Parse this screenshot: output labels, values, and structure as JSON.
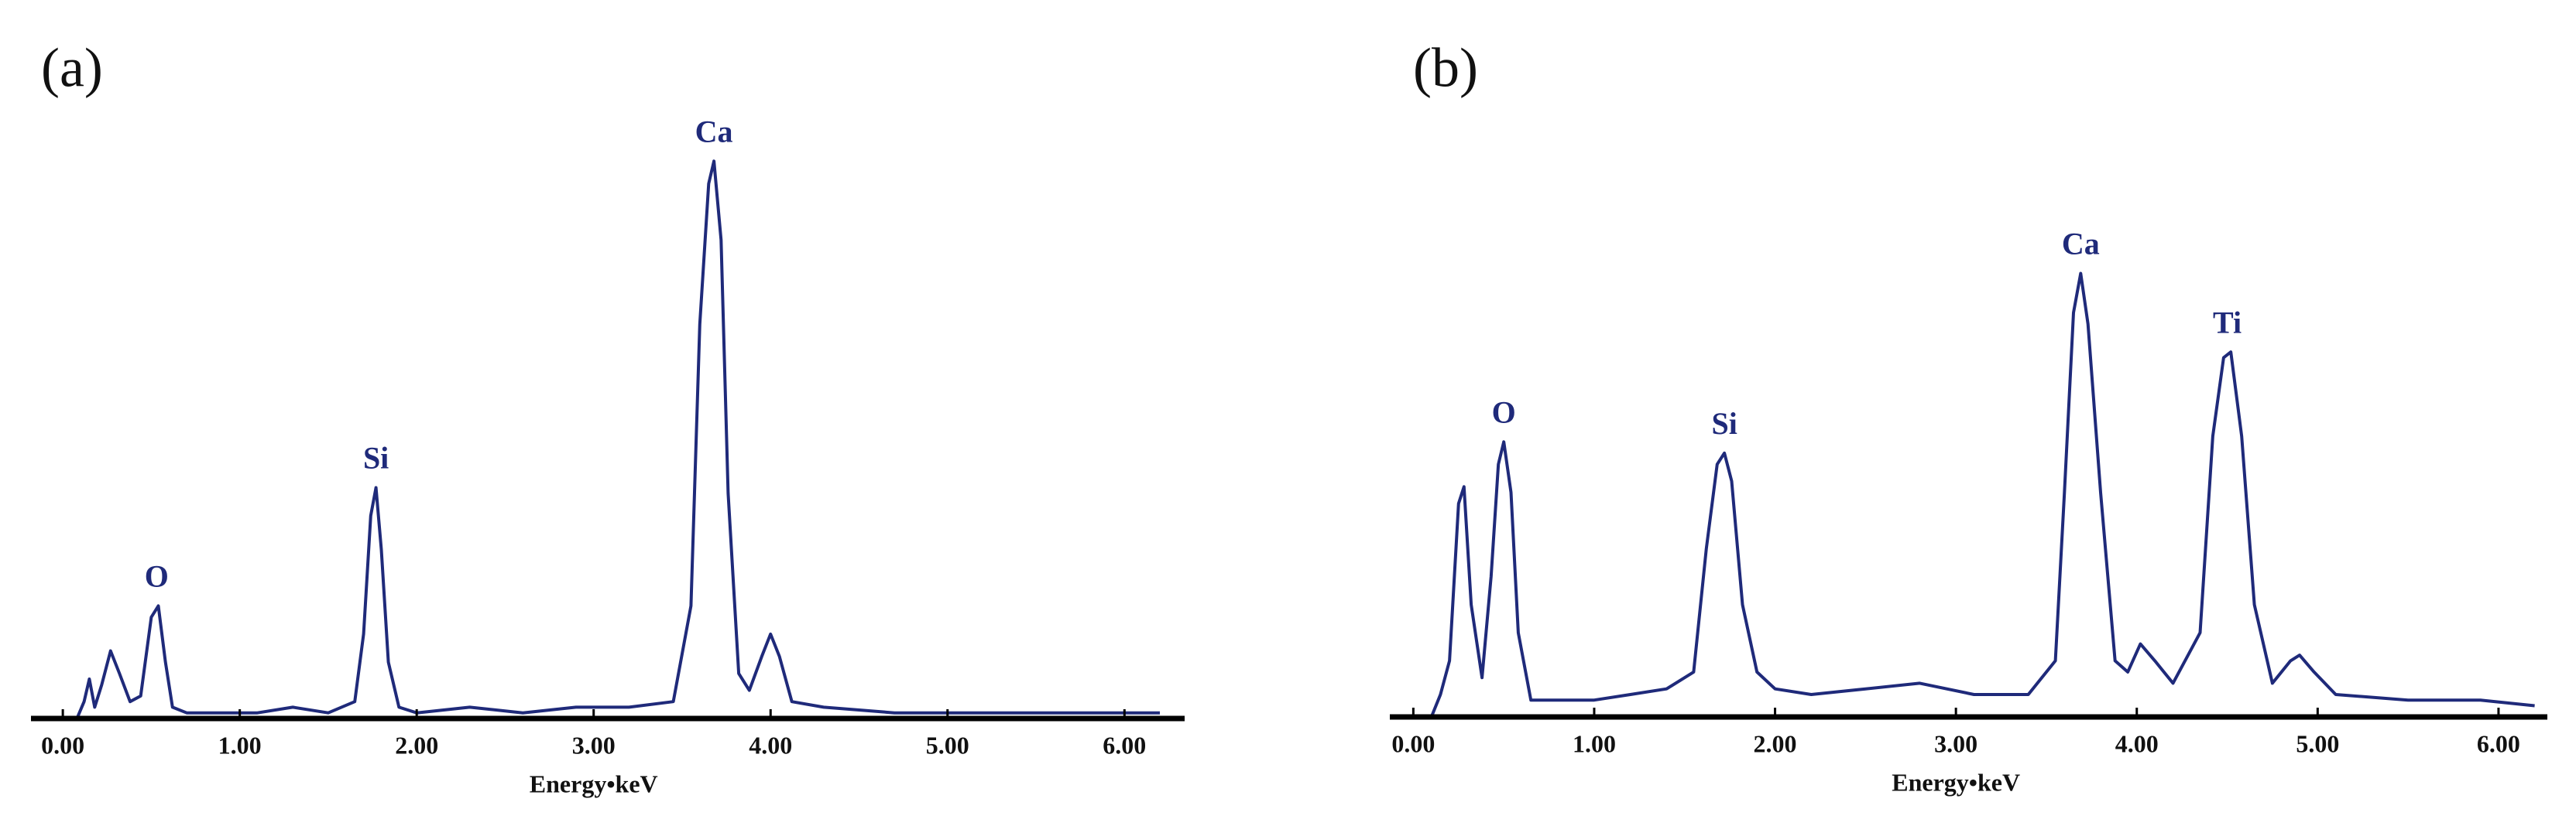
{
  "chart_data": [
    {
      "type": "line",
      "panel_label": "(a)",
      "xlabel": "Energy•keV",
      "color": "#1f2a7a",
      "xlim": [
        -0.18,
        6.34
      ],
      "ylim": [
        0,
        100
      ],
      "xticks": [
        {
          "value": 0,
          "label": "0.00"
        },
        {
          "value": 1,
          "label": "1.00"
        },
        {
          "value": 2,
          "label": "2.00"
        },
        {
          "value": 3,
          "label": "3.00"
        },
        {
          "value": 4,
          "label": "4.00"
        },
        {
          "value": 5,
          "label": "5.00"
        },
        {
          "value": 6,
          "label": "6.00"
        }
      ],
      "x": [
        0.08,
        0.12,
        0.15,
        0.18,
        0.22,
        0.27,
        0.32,
        0.38,
        0.44,
        0.5,
        0.54,
        0.58,
        0.62,
        0.7,
        0.9,
        1.1,
        1.3,
        1.5,
        1.65,
        1.7,
        1.74,
        1.77,
        1.8,
        1.84,
        1.9,
        2.0,
        2.3,
        2.6,
        2.9,
        3.2,
        3.45,
        3.55,
        3.6,
        3.65,
        3.68,
        3.72,
        3.76,
        3.82,
        3.88,
        3.95,
        4.0,
        4.05,
        4.12,
        4.3,
        4.7,
        5.1,
        5.5,
        5.9,
        6.2
      ],
      "values": [
        0,
        3,
        7,
        2,
        6,
        12,
        8,
        3,
        4,
        18,
        20,
        10,
        2,
        1,
        1,
        1,
        2,
        1,
        3,
        15,
        36,
        41,
        30,
        10,
        2,
        1,
        2,
        1,
        2,
        2,
        3,
        20,
        70,
        95,
        99,
        85,
        40,
        8,
        5,
        11,
        15,
        11,
        3,
        2,
        1,
        1,
        1,
        1,
        1
      ],
      "annotations": [
        {
          "label": "O",
          "x": 0.53,
          "y": 20
        },
        {
          "label": "Si",
          "x": 1.77,
          "y": 41
        },
        {
          "label": "Ca",
          "x": 3.68,
          "y": 99
        }
      ]
    },
    {
      "type": "line",
      "panel_label": "(b)",
      "xlabel": "Energy•keV",
      "color": "#1f2a7a",
      "xlim": [
        -0.13,
        6.27
      ],
      "ylim": [
        0,
        100
      ],
      "xticks": [
        {
          "value": 0,
          "label": "0.00"
        },
        {
          "value": 1,
          "label": "1.00"
        },
        {
          "value": 2,
          "label": "2.00"
        },
        {
          "value": 3,
          "label": "3.00"
        },
        {
          "value": 4,
          "label": "4.00"
        },
        {
          "value": 5,
          "label": "5.00"
        },
        {
          "value": 6,
          "label": "6.00"
        }
      ],
      "x": [
        0.1,
        0.15,
        0.2,
        0.25,
        0.28,
        0.32,
        0.38,
        0.43,
        0.47,
        0.5,
        0.54,
        0.58,
        0.65,
        0.8,
        1.0,
        1.2,
        1.4,
        1.55,
        1.62,
        1.68,
        1.72,
        1.76,
        1.82,
        1.9,
        2.0,
        2.2,
        2.5,
        2.8,
        3.1,
        3.4,
        3.55,
        3.6,
        3.65,
        3.69,
        3.73,
        3.8,
        3.88,
        3.95,
        4.02,
        4.1,
        4.2,
        4.35,
        4.42,
        4.48,
        4.52,
        4.58,
        4.65,
        4.75,
        4.85,
        4.9,
        4.98,
        5.1,
        5.5,
        5.9,
        6.2
      ],
      "values": [
        0,
        4,
        10,
        38,
        41,
        20,
        7,
        25,
        45,
        49,
        40,
        15,
        3,
        3,
        3,
        4,
        5,
        8,
        30,
        45,
        47,
        42,
        20,
        8,
        5,
        4,
        5,
        6,
        4,
        4,
        10,
        40,
        72,
        79,
        70,
        40,
        10,
        8,
        13,
        10,
        6,
        15,
        50,
        64,
        65,
        50,
        20,
        6,
        10,
        11,
        8,
        4,
        3,
        3,
        2
      ],
      "annotations": [
        {
          "label": "O",
          "x": 0.5,
          "y": 49
        },
        {
          "label": "Si",
          "x": 1.72,
          "y": 47
        },
        {
          "label": "Ca",
          "x": 3.69,
          "y": 79
        },
        {
          "label": "Ti",
          "x": 4.5,
          "y": 65
        }
      ]
    }
  ]
}
